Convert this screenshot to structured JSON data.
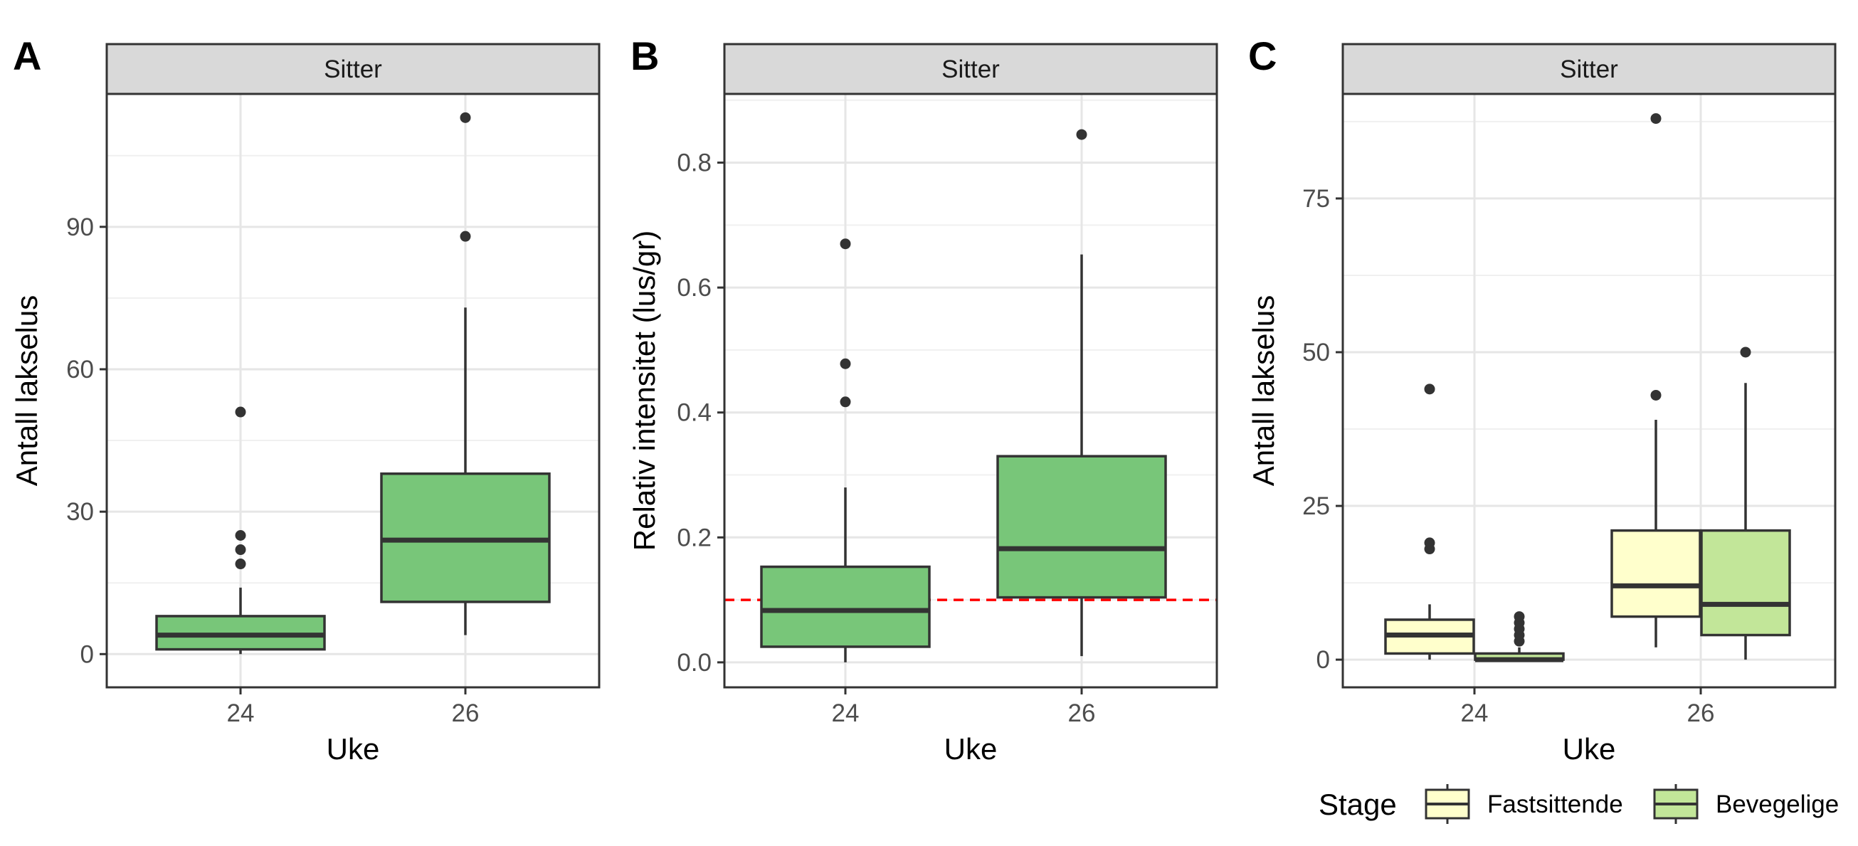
{
  "chart_data": [
    {
      "panel": "A",
      "type": "box",
      "strip": "Sitter",
      "xlabel": "Uke",
      "ylabel": "Antall lakselus",
      "categories": [
        "24",
        "26"
      ],
      "ylim": [
        -7,
        118
      ],
      "yticks": [
        0,
        30,
        60,
        90
      ],
      "ytick_labels": [
        "0",
        "30",
        "60",
        "90"
      ],
      "fill": "#78c679",
      "boxes": [
        {
          "x": "24",
          "min": 0,
          "q1": 1,
          "median": 4,
          "q3": 8,
          "max": 14,
          "outliers": [
            19,
            22,
            25,
            51
          ]
        },
        {
          "x": "26",
          "min": 4,
          "q1": 11,
          "median": 24,
          "q3": 38,
          "max": 73,
          "outliers": [
            88,
            113
          ]
        }
      ]
    },
    {
      "panel": "B",
      "type": "box",
      "strip": "Sitter",
      "xlabel": "Uke",
      "ylabel": "Relativ intensitet (lus/gr)",
      "categories": [
        "24",
        "26"
      ],
      "ylim": [
        -0.04,
        0.91
      ],
      "yticks": [
        0,
        0.2,
        0.4,
        0.6,
        0.8
      ],
      "ytick_labels": [
        "0.0",
        "0.2",
        "0.4",
        "0.6",
        "0.8"
      ],
      "fill": "#78c679",
      "reference_line": {
        "y": 0.1,
        "color": "#ff0000",
        "style": "dashed"
      },
      "boxes": [
        {
          "x": "24",
          "min": 0.0,
          "q1": 0.025,
          "median": 0.083,
          "q3": 0.153,
          "max": 0.28,
          "outliers": [
            0.417,
            0.478,
            0.67
          ]
        },
        {
          "x": "26",
          "min": 0.01,
          "q1": 0.104,
          "median": 0.182,
          "q3": 0.33,
          "max": 0.653,
          "outliers": [
            0.845
          ]
        }
      ]
    },
    {
      "panel": "C",
      "type": "box",
      "strip": "Sitter",
      "xlabel": "Uke",
      "ylabel": "Antall lakselus",
      "categories": [
        "24",
        "26"
      ],
      "ylim": [
        -4.5,
        92
      ],
      "yticks": [
        0,
        25,
        50,
        75
      ],
      "ytick_labels": [
        "0",
        "25",
        "50",
        "75"
      ],
      "legend": {
        "title": "Stage",
        "position": "bottom"
      },
      "series": [
        {
          "name": "Fastsittende",
          "fill": "#ffffcc",
          "boxes": [
            {
              "x": "24",
              "min": 0,
              "q1": 1,
              "median": 4,
              "q3": 6.5,
              "max": 9,
              "outliers": [
                18,
                19,
                44
              ]
            },
            {
              "x": "26",
              "min": 2,
              "q1": 7,
              "median": 12,
              "q3": 21,
              "max": 39,
              "outliers": [
                43,
                88
              ]
            }
          ]
        },
        {
          "name": "Bevegelige",
          "fill": "#c2e699",
          "boxes": [
            {
              "x": "24",
              "min": 0,
              "q1": 0,
              "median": 0,
              "q3": 1,
              "max": 2,
              "outliers": [
                3,
                4,
                5,
                6,
                7
              ]
            },
            {
              "x": "26",
              "min": 0,
              "q1": 4,
              "median": 9,
              "q3": 21,
              "max": 45,
              "outliers": [
                50
              ]
            }
          ]
        }
      ]
    }
  ]
}
